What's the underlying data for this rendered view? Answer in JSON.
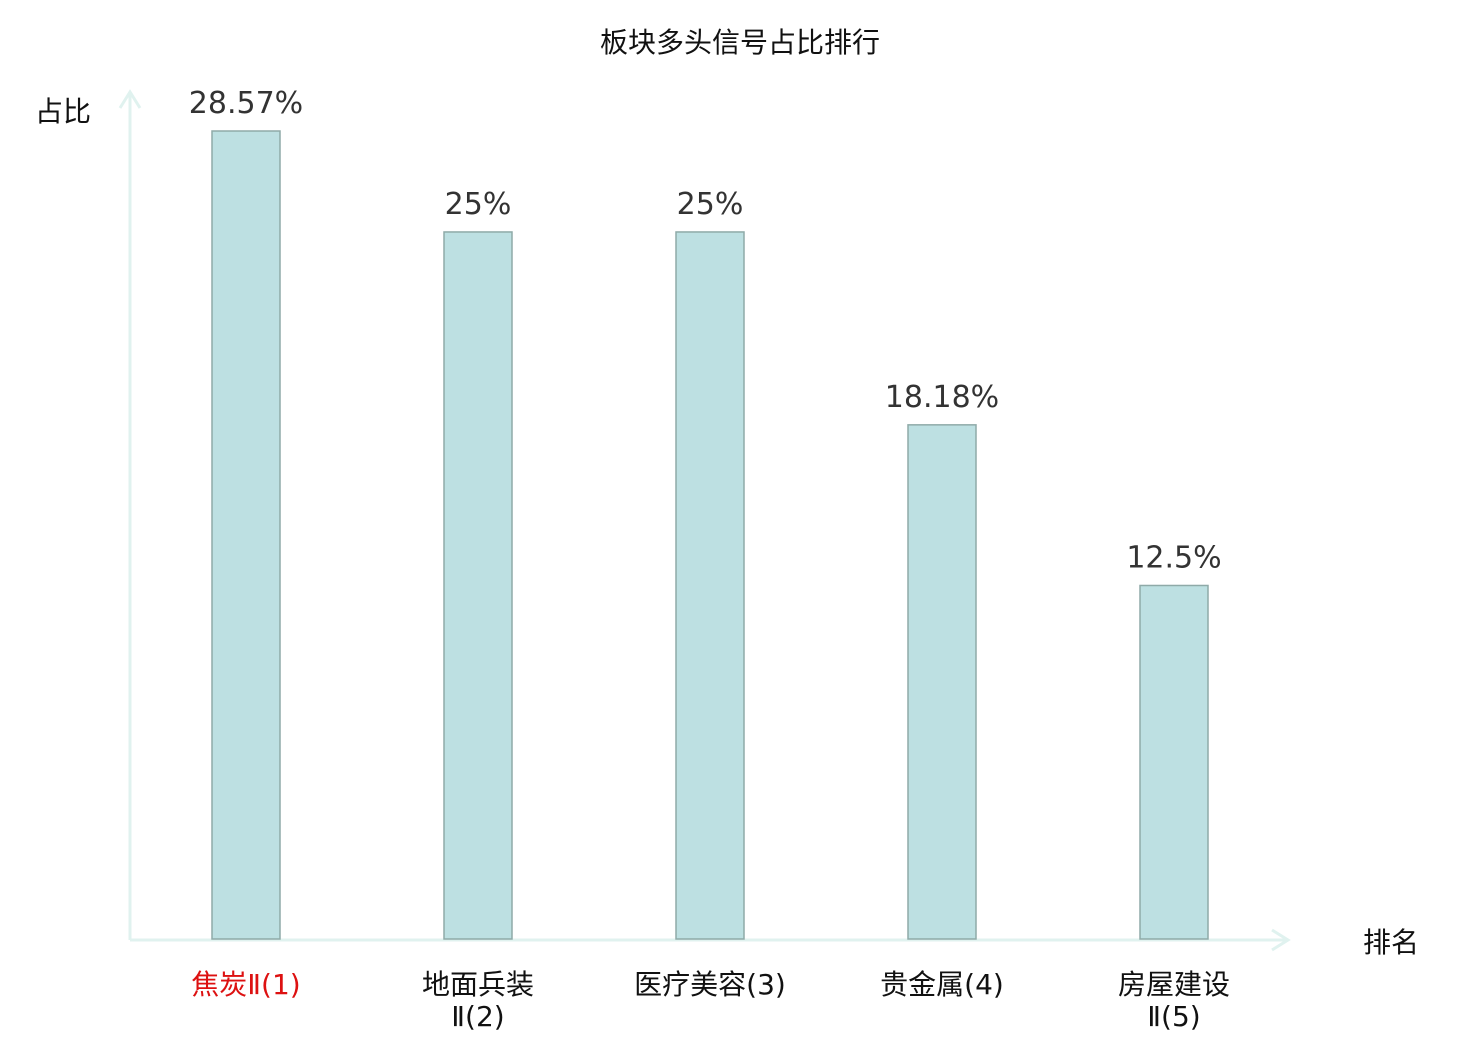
{
  "chart_data": {
    "type": "bar",
    "title": "板块多头信号占比排行",
    "ylabel": "占比",
    "xlabel": "排名",
    "categories": [
      {
        "line1": "焦炭Ⅱ(1)",
        "line2": "",
        "highlight": true
      },
      {
        "line1": "地面兵装",
        "line2": "Ⅱ(2)",
        "highlight": false
      },
      {
        "line1": "医疗美容(3)",
        "line2": "",
        "highlight": false
      },
      {
        "line1": "贵金属(4)",
        "line2": "",
        "highlight": false
      },
      {
        "line1": "房屋建设",
        "line2": "Ⅱ(5)",
        "highlight": false
      }
    ],
    "values": [
      28.57,
      25,
      25,
      18.18,
      12.5
    ],
    "value_labels": [
      "28.57%",
      "25%",
      "25%",
      "18.18%",
      "12.5%"
    ],
    "ylim": [
      0,
      28.57
    ],
    "grid": false,
    "colors": {
      "bar_fill": "#bde0e2",
      "bar_stroke": "#8faaa8",
      "axis": "#e0f2ef",
      "highlight_label": "#dd1111"
    }
  }
}
